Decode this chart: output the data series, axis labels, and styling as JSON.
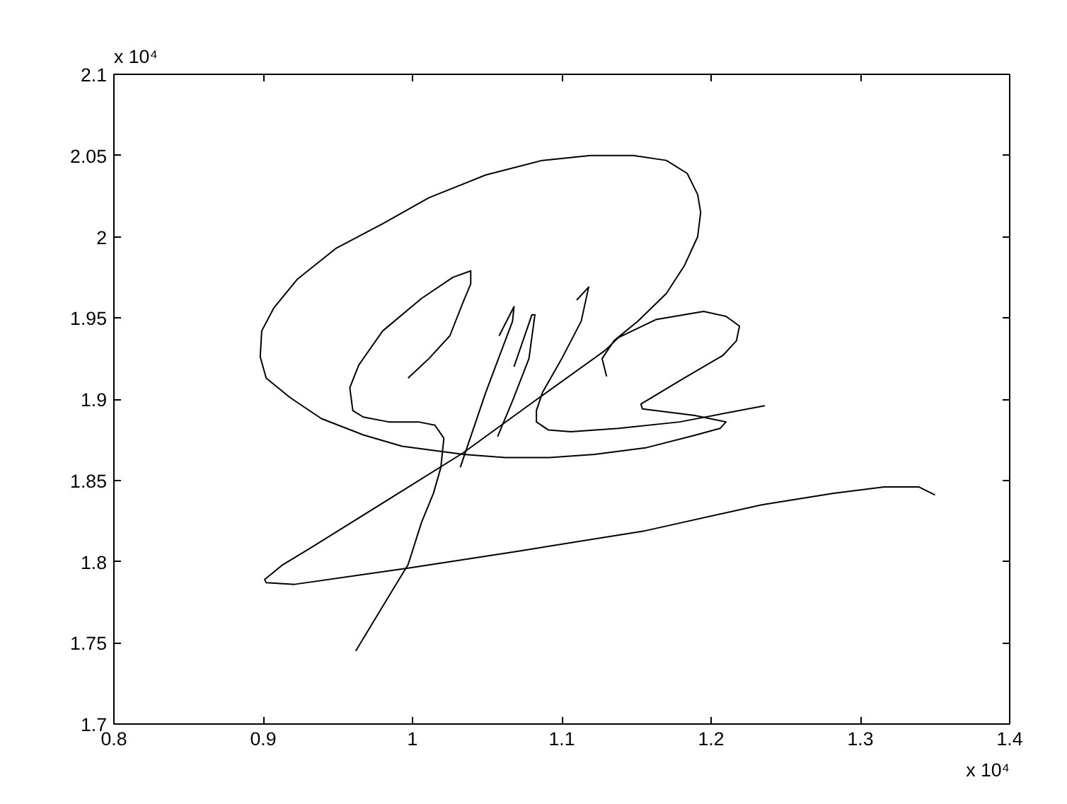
{
  "chart_data": {
    "type": "line",
    "xlim": [
      0.8,
      1.4
    ],
    "ylim": [
      1.7,
      2.1
    ],
    "xticks": [
      0.8,
      0.9,
      1,
      1.1,
      1.2,
      1.3,
      1.4
    ],
    "yticks": [
      1.7,
      1.75,
      1.8,
      1.85,
      1.9,
      1.95,
      2,
      2.05,
      2.1
    ],
    "annotations": [
      "x 10⁴",
      "x 10⁴"
    ],
    "series": [
      {
        "color": "#000000",
        "x": [
          0.962,
          0.987,
          0.997,
          1.006,
          1.014,
          1.019,
          1.021,
          1.015,
          1.004,
          0.984,
          0.967,
          0.96,
          0.958,
          0.964,
          0.98,
          1.006,
          1.027,
          1.039,
          1.039,
          1.034,
          1.025,
          1.011,
          0.997
        ],
        "values": [
          1.745,
          1.783,
          1.798,
          1.824,
          1.842,
          1.858,
          1.876,
          1.884,
          1.886,
          1.886,
          1.889,
          1.893,
          1.907,
          1.921,
          1.942,
          1.962,
          1.975,
          1.979,
          1.971,
          1.96,
          1.939,
          1.925,
          1.913
        ]
      },
      {
        "color": "#000000",
        "x": [
          1.35,
          1.339,
          1.316,
          1.282,
          1.234,
          1.156,
          1.068,
          0.997,
          0.921,
          0.902,
          0.901,
          0.913,
          0.931,
          0.987,
          1.034,
          1.082,
          1.129,
          1.138,
          1.163,
          1.195,
          1.21,
          1.219,
          1.217,
          1.208,
          1.182,
          1.153,
          1.154,
          1.189,
          1.21,
          1.206,
          1.19,
          1.156,
          1.122,
          1.092,
          1.062,
          1.034,
          0.993,
          0.967,
          0.939,
          0.918,
          0.902,
          0.898,
          0.899,
          0.907,
          0.923,
          0.949,
          0.98,
          1.011,
          1.049,
          1.087,
          1.119,
          1.148,
          1.17,
          1.184,
          1.191,
          1.193,
          1.191,
          1.182,
          1.17,
          1.151,
          1.135,
          1.127,
          1.13
        ],
        "values": [
          1.841,
          1.846,
          1.846,
          1.842,
          1.835,
          1.819,
          1.806,
          1.796,
          1.786,
          1.787,
          1.789,
          1.798,
          1.808,
          1.84,
          1.867,
          1.899,
          1.93,
          1.938,
          1.949,
          1.954,
          1.951,
          1.945,
          1.936,
          1.927,
          1.913,
          1.897,
          1.894,
          1.89,
          1.886,
          1.882,
          1.878,
          1.87,
          1.866,
          1.864,
          1.864,
          1.866,
          1.871,
          1.878,
          1.888,
          1.901,
          1.913,
          1.926,
          1.942,
          1.956,
          1.974,
          1.993,
          2.008,
          2.024,
          2.038,
          2.047,
          2.05,
          2.05,
          2.047,
          2.039,
          2.026,
          2.015,
          2.0,
          1.982,
          1.965,
          1.948,
          1.936,
          1.925,
          1.914
        ]
      },
      {
        "color": "#000000",
        "x": [
          1.11,
          1.118,
          1.113,
          1.1,
          1.087,
          1.083,
          1.083,
          1.091,
          1.106,
          1.138,
          1.179,
          1.236
        ],
        "values": [
          1.961,
          1.969,
          1.948,
          1.925,
          1.904,
          1.893,
          1.886,
          1.881,
          1.88,
          1.882,
          1.886,
          1.896
        ]
      },
      {
        "color": "#000000",
        "x": [
          1.058,
          1.068,
          1.067,
          1.049,
          1.032
        ],
        "values": [
          1.939,
          1.957,
          1.948,
          1.904,
          1.858
        ]
      },
      {
        "color": "#000000",
        "x": [
          1.068,
          1.08,
          1.082,
          1.078,
          1.067,
          1.057
        ],
        "values": [
          1.92,
          1.952,
          1.952,
          1.925,
          1.899,
          1.877
        ]
      }
    ]
  }
}
